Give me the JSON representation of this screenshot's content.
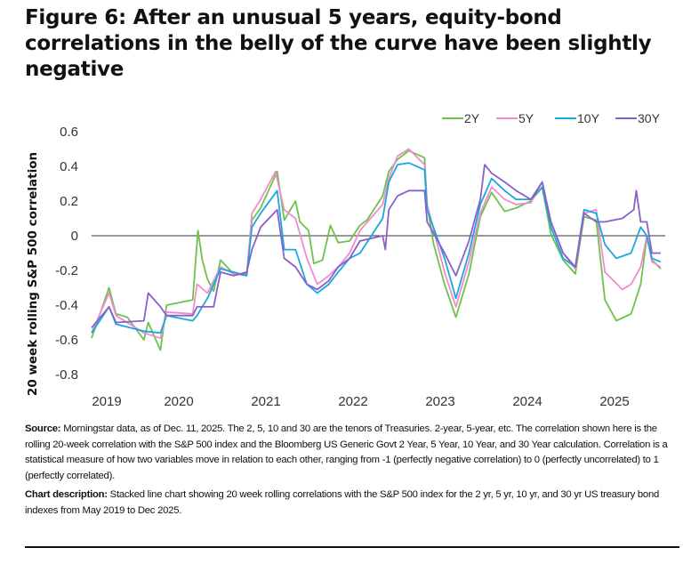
{
  "title": "Figure 6: After an unusual 5 years, equity-bond correlations in the belly of the curve have been slightly negative",
  "source": {
    "label": "Source:",
    "text": " Morningstar data, as of Dec. 11, 2025. The 2, 5, 10 and 30 are the tenors of Treasuries. 2-year, 5-year, etc. The correlation shown here is the rolling 20-week correlation with the S&P 500 index and the Bloomberg US Generic Govt 2 Year, 5 Year, 10 Year, and 30 Year calculation. Correlation is a statistical measure of how two variables move in relation to each other, ranging from -1 (perfectly negative correlation) to 0 (perfectly uncorrelated) to 1 (perfectly correlated)."
  },
  "description": {
    "label": "Chart description:",
    "text": " Stacked line chart showing 20 week rolling correlations with the S&P 500 index for the 2 yr, 5 yr, 10 yr, and 30 yr US treasury bond indexes from May 2019 to Dec 2025."
  },
  "chart_data": {
    "type": "line",
    "ylabel": "20 week rolling S&P 500 correlation",
    "xlabel": "",
    "ylim": [
      -0.8,
      0.6
    ],
    "yticks": [
      "0.6",
      "0.4",
      "0.2",
      "0",
      "-0.2",
      "-0.4",
      "-0.6",
      "-0.8"
    ],
    "xlim": [
      2019.45,
      2026.05
    ],
    "xticks": [
      "2019",
      "2020",
      "2021",
      "2022",
      "2023",
      "2024",
      "2025"
    ],
    "zero_line": true,
    "grid": false,
    "legend_position": "top-right",
    "series": [
      {
        "name": "2Y",
        "color": "#6cc24a",
        "points": [
          [
            2019.5,
            -0.59
          ],
          [
            2019.7,
            -0.3
          ],
          [
            2019.78,
            -0.45
          ],
          [
            2019.91,
            -0.47
          ],
          [
            2020.1,
            -0.6
          ],
          [
            2020.15,
            -0.5
          ],
          [
            2020.29,
            -0.66
          ],
          [
            2020.36,
            -0.4
          ],
          [
            2020.66,
            -0.37
          ],
          [
            2020.72,
            0.03
          ],
          [
            2020.77,
            -0.14
          ],
          [
            2020.83,
            -0.25
          ],
          [
            2020.9,
            -0.32
          ],
          [
            2020.98,
            -0.14
          ],
          [
            2021.13,
            -0.22
          ],
          [
            2021.28,
            -0.22
          ],
          [
            2021.34,
            0.09
          ],
          [
            2021.44,
            0.16
          ],
          [
            2021.63,
            0.37
          ],
          [
            2021.71,
            0.09
          ],
          [
            2021.84,
            0.2
          ],
          [
            2021.89,
            0.08
          ],
          [
            2021.99,
            0.03
          ],
          [
            2022.05,
            -0.16
          ],
          [
            2022.15,
            -0.14
          ],
          [
            2022.24,
            0.06
          ],
          [
            2022.33,
            -0.04
          ],
          [
            2022.46,
            -0.03
          ],
          [
            2022.58,
            0.06
          ],
          [
            2022.66,
            0.09
          ],
          [
            2022.84,
            0.23
          ],
          [
            2022.91,
            0.37
          ],
          [
            2023.01,
            0.44
          ],
          [
            2023.14,
            0.49
          ],
          [
            2023.32,
            0.45
          ],
          [
            2023.35,
            0.18
          ],
          [
            2023.42,
            -0.04
          ],
          [
            2023.55,
            -0.28
          ],
          [
            2023.68,
            -0.47
          ],
          [
            2023.83,
            -0.22
          ],
          [
            2023.96,
            0.11
          ],
          [
            2024.09,
            0.25
          ],
          [
            2024.24,
            0.14
          ],
          [
            2024.37,
            0.16
          ],
          [
            2024.54,
            0.2
          ],
          [
            2024.67,
            0.28
          ],
          [
            2024.77,
            0.01
          ],
          [
            2024.91,
            -0.14
          ],
          [
            2025.05,
            -0.22
          ],
          [
            2025.15,
            0.11
          ],
          [
            2025.29,
            0.09
          ],
          [
            2025.39,
            -0.37
          ],
          [
            2025.52,
            -0.49
          ],
          [
            2025.69,
            -0.45
          ],
          [
            2025.8,
            -0.28
          ],
          [
            2025.87,
            -0.01
          ],
          [
            2025.93,
            -0.14
          ],
          [
            2026.03,
            -0.19
          ]
        ]
      },
      {
        "name": "5Y",
        "color": "#f28ad0",
        "points": [
          [
            2019.5,
            -0.56
          ],
          [
            2019.7,
            -0.33
          ],
          [
            2019.78,
            -0.46
          ],
          [
            2020.1,
            -0.56
          ],
          [
            2020.29,
            -0.59
          ],
          [
            2020.36,
            -0.44
          ],
          [
            2020.66,
            -0.45
          ],
          [
            2020.71,
            -0.28
          ],
          [
            2020.83,
            -0.33
          ],
          [
            2020.98,
            -0.18
          ],
          [
            2021.13,
            -0.22
          ],
          [
            2021.28,
            -0.23
          ],
          [
            2021.34,
            0.13
          ],
          [
            2021.44,
            0.21
          ],
          [
            2021.61,
            0.37
          ],
          [
            2021.71,
            0.15
          ],
          [
            2021.84,
            0.1
          ],
          [
            2021.97,
            -0.13
          ],
          [
            2022.09,
            -0.28
          ],
          [
            2022.22,
            -0.23
          ],
          [
            2022.33,
            -0.18
          ],
          [
            2022.46,
            -0.1
          ],
          [
            2022.58,
            0.03
          ],
          [
            2022.84,
            0.18
          ],
          [
            2022.91,
            0.33
          ],
          [
            2023.01,
            0.46
          ],
          [
            2023.14,
            0.5
          ],
          [
            2023.32,
            0.41
          ],
          [
            2023.35,
            0.18
          ],
          [
            2023.55,
            -0.21
          ],
          [
            2023.68,
            -0.41
          ],
          [
            2023.83,
            -0.15
          ],
          [
            2023.96,
            0.13
          ],
          [
            2024.09,
            0.28
          ],
          [
            2024.24,
            0.21
          ],
          [
            2024.37,
            0.18
          ],
          [
            2024.54,
            0.19
          ],
          [
            2024.67,
            0.31
          ],
          [
            2024.77,
            0.08
          ],
          [
            2024.91,
            -0.1
          ],
          [
            2025.05,
            -0.19
          ],
          [
            2025.15,
            0.13
          ],
          [
            2025.29,
            0.15
          ],
          [
            2025.39,
            -0.21
          ],
          [
            2025.59,
            -0.31
          ],
          [
            2025.69,
            -0.28
          ],
          [
            2025.8,
            -0.18
          ],
          [
            2025.87,
            0.0
          ],
          [
            2025.93,
            -0.15
          ],
          [
            2026.03,
            -0.18
          ]
        ]
      },
      {
        "name": "10Y",
        "color": "#1aa7de",
        "points": [
          [
            2019.5,
            -0.56
          ],
          [
            2019.7,
            -0.41
          ],
          [
            2019.78,
            -0.51
          ],
          [
            2020.1,
            -0.55
          ],
          [
            2020.29,
            -0.56
          ],
          [
            2020.36,
            -0.46
          ],
          [
            2020.66,
            -0.49
          ],
          [
            2020.71,
            -0.46
          ],
          [
            2020.83,
            -0.36
          ],
          [
            2020.98,
            -0.19
          ],
          [
            2021.13,
            -0.21
          ],
          [
            2021.28,
            -0.23
          ],
          [
            2021.34,
            0.05
          ],
          [
            2021.44,
            0.13
          ],
          [
            2021.63,
            0.26
          ],
          [
            2021.71,
            -0.08
          ],
          [
            2021.84,
            -0.08
          ],
          [
            2021.97,
            -0.28
          ],
          [
            2022.09,
            -0.33
          ],
          [
            2022.22,
            -0.28
          ],
          [
            2022.33,
            -0.21
          ],
          [
            2022.46,
            -0.13
          ],
          [
            2022.58,
            -0.1
          ],
          [
            2022.84,
            0.1
          ],
          [
            2022.91,
            0.31
          ],
          [
            2023.01,
            0.41
          ],
          [
            2023.14,
            0.42
          ],
          [
            2023.32,
            0.38
          ],
          [
            2023.35,
            0.15
          ],
          [
            2023.55,
            -0.13
          ],
          [
            2023.68,
            -0.36
          ],
          [
            2023.83,
            -0.1
          ],
          [
            2023.96,
            0.18
          ],
          [
            2024.09,
            0.33
          ],
          [
            2024.24,
            0.26
          ],
          [
            2024.37,
            0.21
          ],
          [
            2024.54,
            0.21
          ],
          [
            2024.67,
            0.28
          ],
          [
            2024.77,
            0.05
          ],
          [
            2024.91,
            -0.13
          ],
          [
            2025.05,
            -0.18
          ],
          [
            2025.15,
            0.15
          ],
          [
            2025.29,
            0.13
          ],
          [
            2025.39,
            -0.05
          ],
          [
            2025.52,
            -0.13
          ],
          [
            2025.69,
            -0.1
          ],
          [
            2025.8,
            0.05
          ],
          [
            2025.87,
            0.0
          ],
          [
            2025.93,
            -0.13
          ],
          [
            2026.03,
            -0.15
          ]
        ]
      },
      {
        "name": "30Y",
        "color": "#8a5fc7",
        "points": [
          [
            2019.5,
            -0.53
          ],
          [
            2019.7,
            -0.41
          ],
          [
            2019.78,
            -0.5
          ],
          [
            2020.1,
            -0.49
          ],
          [
            2020.15,
            -0.33
          ],
          [
            2020.29,
            -0.41
          ],
          [
            2020.36,
            -0.46
          ],
          [
            2020.66,
            -0.46
          ],
          [
            2020.71,
            -0.41
          ],
          [
            2020.9,
            -0.41
          ],
          [
            2020.98,
            -0.21
          ],
          [
            2021.13,
            -0.23
          ],
          [
            2021.28,
            -0.21
          ],
          [
            2021.34,
            -0.08
          ],
          [
            2021.44,
            0.05
          ],
          [
            2021.63,
            0.15
          ],
          [
            2021.71,
            -0.13
          ],
          [
            2021.84,
            -0.18
          ],
          [
            2021.97,
            -0.28
          ],
          [
            2022.09,
            -0.31
          ],
          [
            2022.22,
            -0.26
          ],
          [
            2022.33,
            -0.18
          ],
          [
            2022.46,
            -0.13
          ],
          [
            2022.58,
            -0.03
          ],
          [
            2022.84,
            0.0
          ],
          [
            2022.87,
            -0.08
          ],
          [
            2022.91,
            0.15
          ],
          [
            2023.01,
            0.23
          ],
          [
            2023.14,
            0.26
          ],
          [
            2023.32,
            0.26
          ],
          [
            2023.35,
            0.08
          ],
          [
            2023.55,
            -0.1
          ],
          [
            2023.68,
            -0.23
          ],
          [
            2023.83,
            -0.03
          ],
          [
            2023.96,
            0.21
          ],
          [
            2024.01,
            0.41
          ],
          [
            2024.09,
            0.36
          ],
          [
            2024.24,
            0.31
          ],
          [
            2024.37,
            0.26
          ],
          [
            2024.54,
            0.21
          ],
          [
            2024.67,
            0.31
          ],
          [
            2024.77,
            0.08
          ],
          [
            2024.91,
            -0.1
          ],
          [
            2025.05,
            -0.18
          ],
          [
            2025.15,
            0.13
          ],
          [
            2025.29,
            0.08
          ],
          [
            2025.39,
            0.08
          ],
          [
            2025.59,
            0.1
          ],
          [
            2025.72,
            0.15
          ],
          [
            2025.75,
            0.26
          ],
          [
            2025.8,
            0.08
          ],
          [
            2025.87,
            0.08
          ],
          [
            2025.93,
            -0.1
          ],
          [
            2026.03,
            -0.1
          ]
        ]
      }
    ]
  }
}
